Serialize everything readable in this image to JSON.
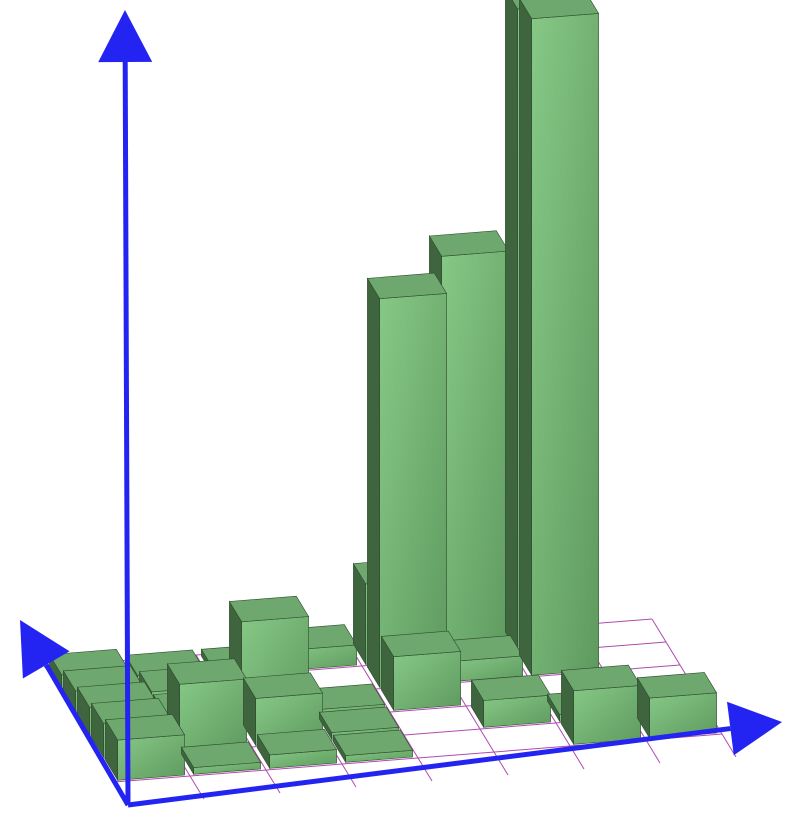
{
  "colors": {
    "background": "#ffffff",
    "axis": "#2424f2",
    "grid": "#b04ab0",
    "bar_top": "#6ea86e",
    "bar_front_light": "#86c886",
    "bar_front_dark": "#5f9a5f",
    "bar_side": "#3f653f",
    "bar_edge": "#2e4d2e"
  },
  "chart_data": {
    "type": "bar3d",
    "title": "",
    "xlabel": "",
    "ylabel": "",
    "zlabel": "",
    "grid": true,
    "z_range": [
      0,
      100
    ],
    "x_bins": 8,
    "y_bins": 6,
    "bars": [
      {
        "x": 0,
        "y": 5,
        "z": 2
      },
      {
        "x": 1,
        "y": 5,
        "z": 1
      },
      {
        "x": 2,
        "y": 5,
        "z": 1
      },
      {
        "x": 3,
        "y": 5,
        "z": 3
      },
      {
        "x": 4,
        "y": 5,
        "z": 12
      },
      {
        "x": 5,
        "y": 5,
        "z": 60
      },
      {
        "x": 6,
        "y": 5,
        "z": 96
      },
      {
        "x": 0,
        "y": 4,
        "z": 3
      },
      {
        "x": 1,
        "y": 4,
        "z": 2
      },
      {
        "x": 2,
        "y": 4,
        "z": 2
      },
      {
        "x": 4,
        "y": 4,
        "z": 58
      },
      {
        "x": 5,
        "y": 4,
        "z": 3
      },
      {
        "x": 6,
        "y": 4,
        "z": 98
      },
      {
        "x": 0,
        "y": 3,
        "z": 4
      },
      {
        "x": 1,
        "y": 3,
        "z": 2
      },
      {
        "x": 2,
        "y": 3,
        "z": 15
      },
      {
        "x": 3,
        "y": 3,
        "z": 1
      },
      {
        "x": 4,
        "y": 3,
        "z": 8
      },
      {
        "x": 5,
        "y": 2,
        "z": 4
      },
      {
        "x": 6,
        "y": 2,
        "z": 1
      },
      {
        "x": 0,
        "y": 2,
        "z": 5
      },
      {
        "x": 1,
        "y": 2,
        "z": 10
      },
      {
        "x": 2,
        "y": 2,
        "z": 7
      },
      {
        "x": 3,
        "y": 2,
        "z": 1
      },
      {
        "x": 6,
        "y": 1,
        "z": 8
      },
      {
        "x": 7,
        "y": 1,
        "z": 6
      },
      {
        "x": 0,
        "y": 1,
        "z": 6
      },
      {
        "x": 1,
        "y": 1,
        "z": 1
      },
      {
        "x": 2,
        "y": 1,
        "z": 2
      },
      {
        "x": 3,
        "y": 1,
        "z": 1
      }
    ]
  }
}
